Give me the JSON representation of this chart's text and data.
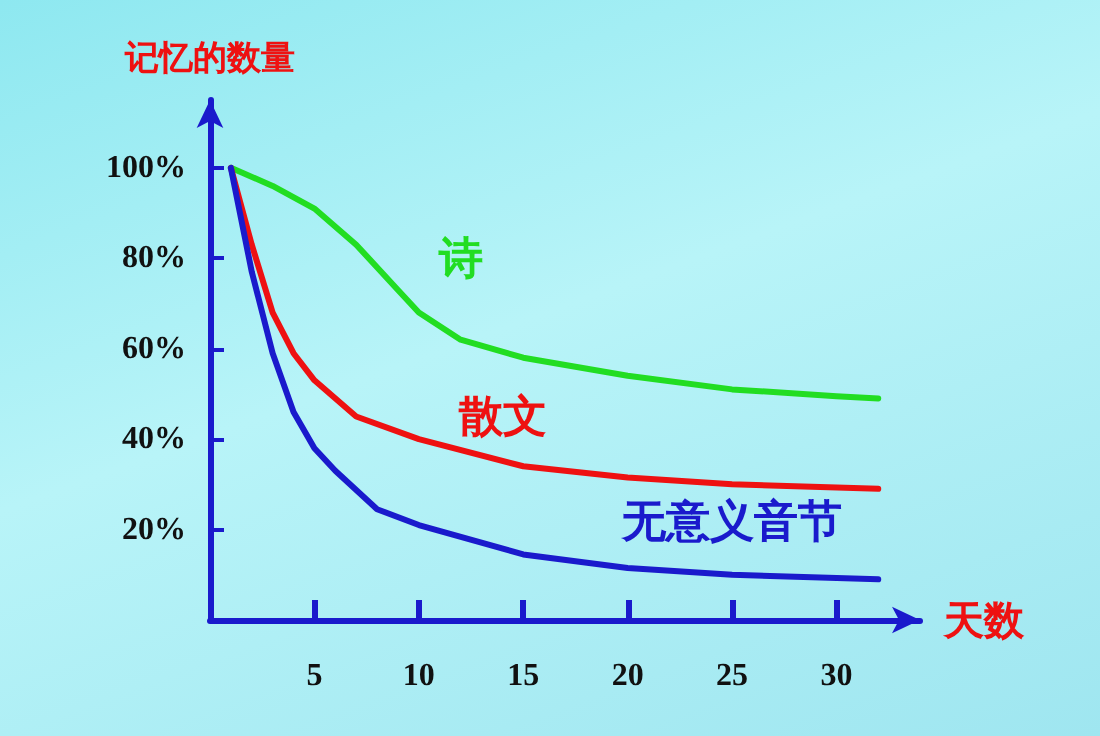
{
  "chart_data": {
    "type": "line",
    "xlabel": "天数",
    "ylabel": "记忆的数量",
    "xlim": [
      0,
      34
    ],
    "xticks": [
      5,
      10,
      15,
      20,
      25,
      30
    ],
    "ylim": [
      0,
      115
    ],
    "yticks": [
      {
        "value": 20,
        "label": "20%"
      },
      {
        "value": 40,
        "label": "40%"
      },
      {
        "value": 60,
        "label": "60%"
      },
      {
        "value": 80,
        "label": "80%"
      },
      {
        "value": 100,
        "label": "100%"
      }
    ],
    "grid": false,
    "legend": false,
    "marker": "none",
    "line_style": "solid",
    "series": [
      {
        "name": "诗",
        "color": "#22dd22",
        "x": [
          1,
          3,
          5,
          7,
          9,
          10,
          12,
          15,
          20,
          25,
          30,
          32
        ],
        "values": [
          100,
          96,
          91,
          83,
          73,
          68,
          62,
          58,
          54,
          51,
          49.5,
          49
        ]
      },
      {
        "name": "散文",
        "color": "#ee1111",
        "x": [
          1,
          2,
          3,
          4,
          5,
          7,
          10,
          15,
          20,
          25,
          32
        ],
        "values": [
          100,
          83,
          68,
          59,
          53,
          45,
          40,
          34,
          31.5,
          30,
          29
        ]
      },
      {
        "name": "无意义音节",
        "color": "#1a1acc",
        "x": [
          1,
          2,
          3,
          4,
          5,
          6,
          8,
          10,
          15,
          20,
          25,
          32
        ],
        "values": [
          100,
          77,
          59,
          46,
          38,
          33,
          24.5,
          21,
          14.5,
          11.5,
          10,
          9
        ]
      }
    ]
  }
}
